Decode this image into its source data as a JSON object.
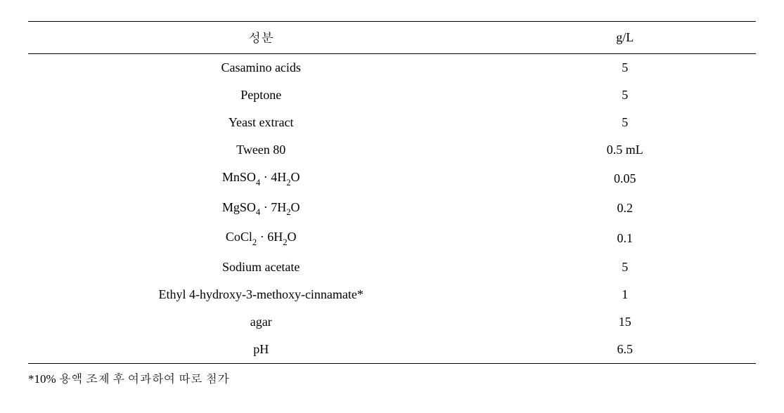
{
  "table": {
    "type": "table",
    "background_color": "#ffffff",
    "text_color": "#000000",
    "border_color": "#000000",
    "header_fontsize": 18,
    "body_fontsize": 18,
    "columns": [
      {
        "key": "component",
        "label": "성분",
        "width": "64%",
        "align": "center"
      },
      {
        "key": "value",
        "label": "g/L",
        "width": "36%",
        "align": "center"
      }
    ],
    "rows": [
      {
        "component": "Casamino  acids",
        "value": "5"
      },
      {
        "component": "Peptone",
        "value": "5"
      },
      {
        "component": "Yeast extract",
        "value": "5"
      },
      {
        "component": "Tween 80",
        "value": "0.5 mL"
      },
      {
        "component_html": "MnSO<sub>4</sub> · 4H<sub>2</sub>O",
        "component": "MnSO4 · 4H2O",
        "value": "0.05"
      },
      {
        "component_html": "MgSO<sub>4</sub> · 7H<sub>2</sub>O",
        "component": "MgSO4 · 7H2O",
        "value": "0.2"
      },
      {
        "component_html": "CoCl<sub>2</sub> · 6H<sub>2</sub>O",
        "component": "CoCl2 · 6H2O",
        "value": "0.1"
      },
      {
        "component": "Sodium acetate",
        "value": "5"
      },
      {
        "component": "Ethyl 4-hydroxy-3-methoxy-cinnamate*",
        "value": "1"
      },
      {
        "component": "agar",
        "value": "15"
      },
      {
        "component": "pH",
        "value": "6.5"
      }
    ]
  },
  "footnote": "*10% 용액 조제 후 여과하여 따로 첨가"
}
